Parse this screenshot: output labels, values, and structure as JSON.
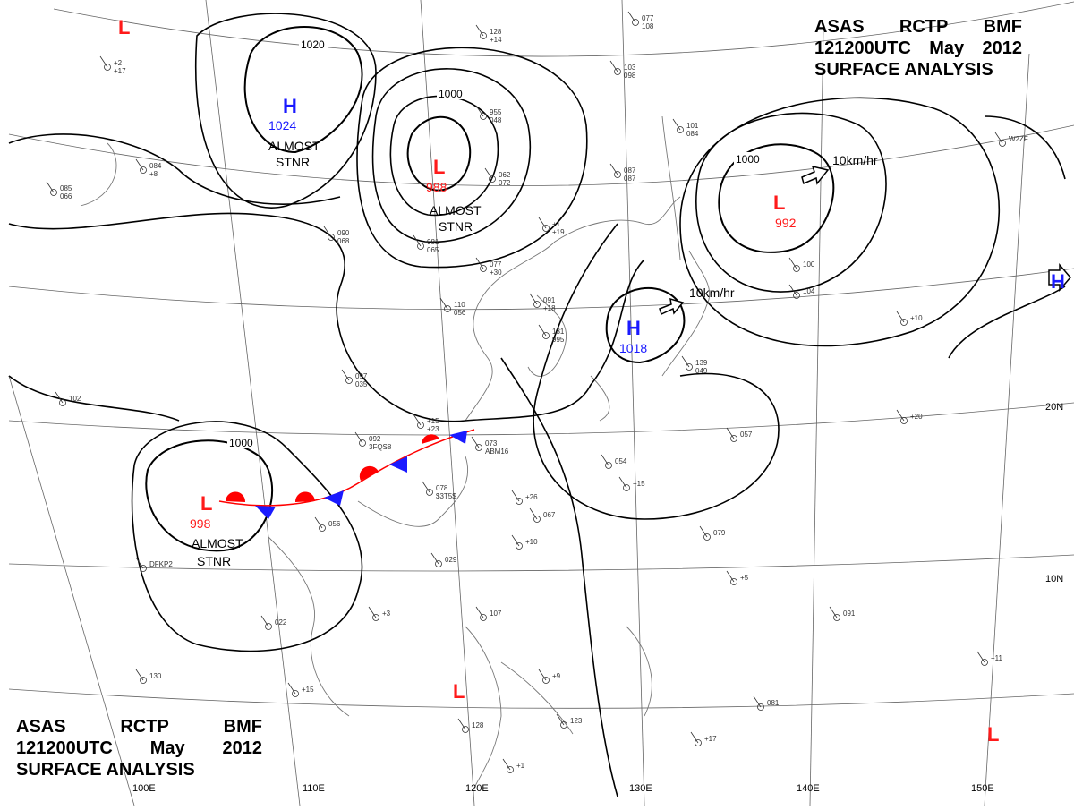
{
  "header": {
    "line1": [
      "ASAS",
      "RCTP",
      "BMF"
    ],
    "line2": [
      "121200UTC",
      "May",
      "2012"
    ],
    "line3": "SURFACE  ANALYSIS"
  },
  "colors": {
    "high": "#1a1aff",
    "low": "#ff1a1a",
    "isobar": "#000000",
    "grid": "#555555"
  },
  "pressure_systems": [
    {
      "type": "H",
      "label": "H",
      "value": "1024",
      "note": [
        "ALMOST",
        "STNR"
      ]
    },
    {
      "type": "L",
      "label": "L",
      "value": "988",
      "note": [
        "ALMOST",
        "STNR"
      ]
    },
    {
      "type": "L",
      "label": "L",
      "value": "992",
      "note": [
        "10km/hr"
      ]
    },
    {
      "type": "H",
      "label": "H",
      "value": "1018",
      "note": [
        "10km/hr"
      ]
    },
    {
      "type": "L",
      "label": "L",
      "value": "998",
      "note": [
        "ALMOST",
        "STNR"
      ]
    },
    {
      "type": "L",
      "label": "L"
    },
    {
      "type": "L",
      "label": "L"
    },
    {
      "type": "L",
      "label": "L"
    },
    {
      "type": "H",
      "label": "H"
    }
  ],
  "isobar_labels": [
    "1020",
    "1000",
    "1000",
    "1000"
  ],
  "longitude_labels": [
    "100E",
    "110E",
    "120E",
    "130E",
    "140E",
    "150E"
  ],
  "latitude_labels": [
    "20N",
    "10N"
  ],
  "station_sample_labels": [
    "128",
    "077",
    "103",
    "+2",
    "101",
    "084",
    "085",
    "955",
    "062",
    "087",
    "+1",
    "081",
    "090",
    "077",
    "110",
    "091",
    "131",
    "139",
    "097",
    "+15",
    "092",
    "073",
    "078",
    "056",
    "029",
    "+3",
    "022",
    "+26",
    "067",
    "+10",
    "054",
    "+15",
    "057",
    "+20",
    "079",
    "+5",
    "091",
    "+11",
    "081",
    "+17",
    "130",
    "+15",
    "128",
    "+1",
    "123",
    "+9",
    "107",
    "102",
    "DFKP2",
    "100",
    "+10",
    "W2ZF",
    "104",
    "+14",
    "108",
    "098",
    "+17",
    "084",
    "+8",
    "066",
    "048",
    "072",
    "087",
    "+19",
    "065",
    "068",
    "+30",
    "056",
    "+18",
    "995",
    "049",
    "035",
    "+23",
    "3FQS8",
    "ABM16",
    "$3T5$"
  ]
}
